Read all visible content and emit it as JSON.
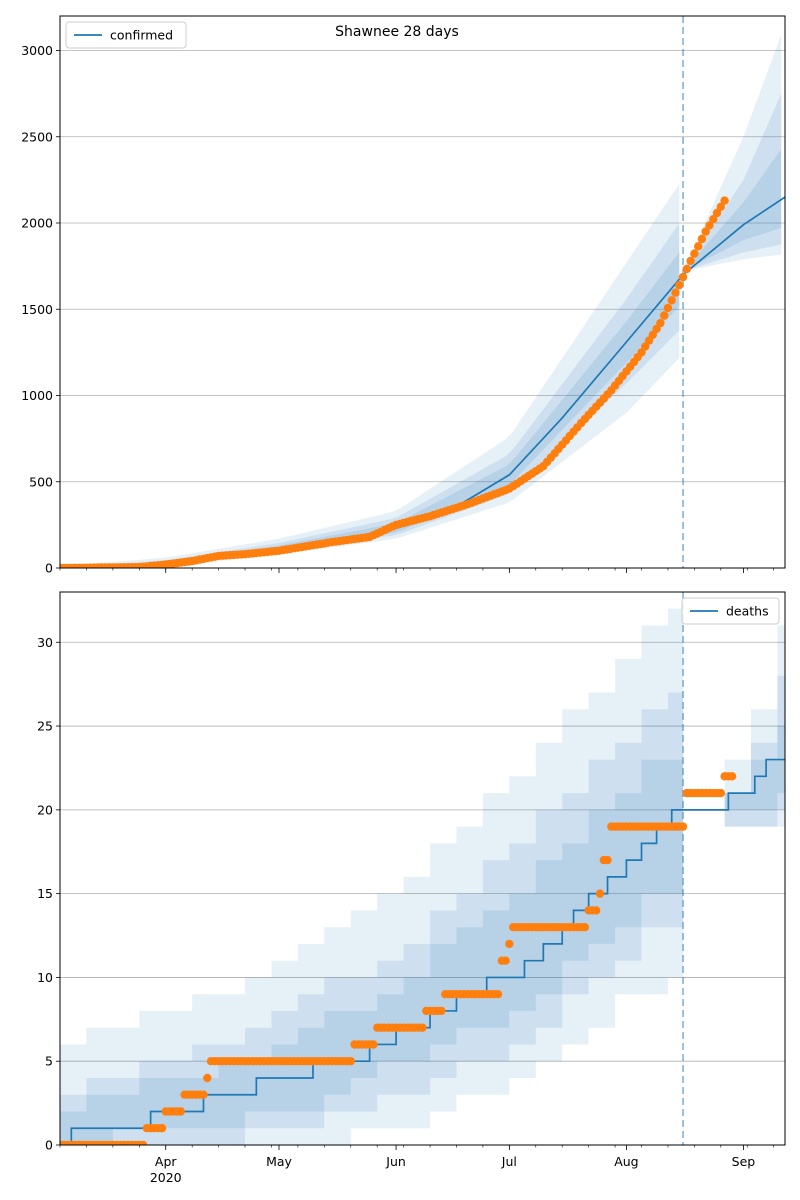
{
  "figure_title": "Shawnee 28 days",
  "colors": {
    "model": "#1f77b4",
    "observed": "#ff7f0e",
    "grid": "#b0b0b0",
    "band": "#1f77b4"
  },
  "chart_data": [
    {
      "type": "line",
      "title": "Shawnee 28 days",
      "legend": {
        "position": "top-left",
        "entries": [
          "confirmed"
        ]
      },
      "xlabel": "",
      "ylabel": "",
      "x_ticks": [
        {
          "date": "2020-04-01",
          "label": "Apr"
        },
        {
          "date": "2020-05-01",
          "label": "May"
        },
        {
          "date": "2020-06-01",
          "label": "Jun"
        },
        {
          "date": "2020-07-01",
          "label": "Jul"
        },
        {
          "date": "2020-08-01",
          "label": "Aug"
        },
        {
          "date": "2020-09-01",
          "label": "Sep"
        }
      ],
      "year_label": "2020",
      "xlim": [
        "2020-03-04",
        "2020-09-12"
      ],
      "ylim": [
        0,
        3200
      ],
      "y_ticks": [
        0,
        500,
        1000,
        1500,
        2000,
        2500,
        3000
      ],
      "grid": "horizontal",
      "forecast_start": "2020-08-16",
      "series": [
        {
          "name": "confirmed",
          "kind": "model-line",
          "points": [
            [
              "2020-03-04",
              0
            ],
            [
              "2020-03-20",
              5
            ],
            [
              "2020-04-01",
              25
            ],
            [
              "2020-04-15",
              70
            ],
            [
              "2020-05-01",
              115
            ],
            [
              "2020-05-15",
              155
            ],
            [
              "2020-06-01",
              230
            ],
            [
              "2020-06-15",
              330
            ],
            [
              "2020-07-01",
              540
            ],
            [
              "2020-07-15",
              870
            ],
            [
              "2020-08-01",
              1310
            ],
            [
              "2020-08-16",
              1700
            ],
            [
              "2020-09-01",
              1990
            ],
            [
              "2020-09-12",
              2150
            ]
          ]
        },
        {
          "kind": "observed",
          "points": [
            [
              "2020-03-04",
              0
            ],
            [
              "2020-03-25",
              5
            ],
            [
              "2020-04-01",
              20
            ],
            [
              "2020-04-08",
              40
            ],
            [
              "2020-04-15",
              70
            ],
            [
              "2020-04-22",
              80
            ],
            [
              "2020-05-01",
              100
            ],
            [
              "2020-05-15",
              150
            ],
            [
              "2020-05-25",
              180
            ],
            [
              "2020-06-01",
              250
            ],
            [
              "2020-06-10",
              300
            ],
            [
              "2020-06-20",
              370
            ],
            [
              "2020-07-01",
              460
            ],
            [
              "2020-07-10",
              590
            ],
            [
              "2020-07-20",
              840
            ],
            [
              "2020-07-28",
              1030
            ],
            [
              "2020-08-05",
              1250
            ],
            [
              "2020-08-10",
              1420
            ],
            [
              "2020-08-15",
              1640
            ],
            [
              "2020-08-18",
              1780
            ],
            [
              "2020-08-22",
              1950
            ],
            [
              "2020-08-27",
              2130
            ]
          ]
        }
      ],
      "bands": {
        "outer_upper": [
          [
            "2020-03-04",
            10
          ],
          [
            "2020-04-01",
            60
          ],
          [
            "2020-05-01",
            170
          ],
          [
            "2020-06-01",
            330
          ],
          [
            "2020-07-01",
            760
          ],
          [
            "2020-08-01",
            1770
          ],
          [
            "2020-08-16",
            2260
          ]
        ],
        "outer_lower": [
          [
            "2020-03-04",
            0
          ],
          [
            "2020-04-01",
            5
          ],
          [
            "2020-05-01",
            80
          ],
          [
            "2020-06-01",
            170
          ],
          [
            "2020-07-01",
            380
          ],
          [
            "2020-08-01",
            900
          ],
          [
            "2020-08-16",
            1240
          ]
        ],
        "mid_upper": [
          [
            "2020-03-04",
            5
          ],
          [
            "2020-04-01",
            45
          ],
          [
            "2020-05-01",
            145
          ],
          [
            "2020-06-01",
            290
          ],
          [
            "2020-07-01",
            660
          ],
          [
            "2020-08-01",
            1560
          ],
          [
            "2020-08-16",
            2030
          ]
        ],
        "mid_lower": [
          [
            "2020-03-04",
            0
          ],
          [
            "2020-04-01",
            10
          ],
          [
            "2020-05-01",
            95
          ],
          [
            "2020-06-01",
            190
          ],
          [
            "2020-07-01",
            430
          ],
          [
            "2020-08-01",
            1070
          ],
          [
            "2020-08-16",
            1400
          ]
        ],
        "inner_upper": [
          [
            "2020-03-04",
            2
          ],
          [
            "2020-04-01",
            35
          ],
          [
            "2020-05-01",
            130
          ],
          [
            "2020-06-01",
            260
          ],
          [
            "2020-07-01",
            600
          ],
          [
            "2020-08-01",
            1430
          ],
          [
            "2020-08-16",
            1860
          ]
        ],
        "inner_lower": [
          [
            "2020-03-04",
            0
          ],
          [
            "2020-04-01",
            15
          ],
          [
            "2020-05-01",
            105
          ],
          [
            "2020-06-01",
            205
          ],
          [
            "2020-07-01",
            480
          ],
          [
            "2020-08-01",
            1190
          ],
          [
            "2020-08-16",
            1540
          ]
        ],
        "f_outer_upper": [
          [
            "2020-08-16",
            1720
          ],
          [
            "2020-09-01",
            2500
          ],
          [
            "2020-09-12",
            3150
          ]
        ],
        "f_outer_lower": [
          [
            "2020-08-16",
            1720
          ],
          [
            "2020-09-01",
            1790
          ],
          [
            "2020-09-12",
            1820
          ]
        ],
        "f_mid_upper": [
          [
            "2020-08-16",
            1720
          ],
          [
            "2020-09-01",
            2250
          ],
          [
            "2020-09-12",
            2800
          ]
        ],
        "f_mid_lower": [
          [
            "2020-08-16",
            1720
          ],
          [
            "2020-09-01",
            1830
          ],
          [
            "2020-09-12",
            1880
          ]
        ],
        "f_inner_upper": [
          [
            "2020-08-16",
            1720
          ],
          [
            "2020-09-01",
            2120
          ],
          [
            "2020-09-12",
            2460
          ]
        ],
        "f_inner_lower": [
          [
            "2020-08-16",
            1720
          ],
          [
            "2020-09-01",
            1900
          ],
          [
            "2020-09-12",
            1980
          ]
        ]
      }
    },
    {
      "type": "line",
      "title": "",
      "legend": {
        "position": "top-right",
        "entries": [
          "deaths"
        ]
      },
      "xlabel": "",
      "ylabel": "",
      "x_ticks": [
        {
          "date": "2020-04-01",
          "label": "Apr"
        },
        {
          "date": "2020-05-01",
          "label": "May"
        },
        {
          "date": "2020-06-01",
          "label": "Jun"
        },
        {
          "date": "2020-07-01",
          "label": "Jul"
        },
        {
          "date": "2020-08-01",
          "label": "Aug"
        },
        {
          "date": "2020-09-01",
          "label": "Sep"
        }
      ],
      "year_label": "2020",
      "xlim": [
        "2020-03-04",
        "2020-09-12"
      ],
      "ylim": [
        0,
        33
      ],
      "y_ticks": [
        0,
        5,
        10,
        15,
        20,
        25,
        30
      ],
      "grid": "horizontal",
      "forecast_start": "2020-08-16",
      "series": [
        {
          "name": "deaths",
          "kind": "model-step",
          "points": [
            [
              "2020-03-04",
              0
            ],
            [
              "2020-03-07",
              1
            ],
            [
              "2020-03-28",
              2
            ],
            [
              "2020-04-11",
              3
            ],
            [
              "2020-04-25",
              4
            ],
            [
              "2020-05-10",
              5
            ],
            [
              "2020-05-25",
              6
            ],
            [
              "2020-06-01",
              7
            ],
            [
              "2020-06-10",
              8
            ],
            [
              "2020-06-17",
              9
            ],
            [
              "2020-06-25",
              10
            ],
            [
              "2020-06-30",
              10
            ],
            [
              "2020-07-05",
              11
            ],
            [
              "2020-07-10",
              12
            ],
            [
              "2020-07-15",
              13
            ],
            [
              "2020-07-18",
              14
            ],
            [
              "2020-07-22",
              15
            ],
            [
              "2020-07-27",
              16
            ],
            [
              "2020-08-01",
              17
            ],
            [
              "2020-08-05",
              18
            ],
            [
              "2020-08-09",
              19
            ],
            [
              "2020-08-13",
              20
            ],
            [
              "2020-08-20",
              20
            ],
            [
              "2020-08-28",
              21
            ],
            [
              "2020-09-04",
              22
            ],
            [
              "2020-09-07",
              23
            ]
          ]
        },
        {
          "kind": "observed",
          "points": [
            [
              "2020-03-04",
              0
            ],
            [
              "2020-03-26",
              0
            ],
            [
              "2020-03-27",
              1
            ],
            [
              "2020-03-31",
              1
            ],
            [
              "2020-04-01",
              2
            ],
            [
              "2020-04-05",
              2
            ],
            [
              "2020-04-06",
              3
            ],
            [
              "2020-04-11",
              3
            ],
            [
              "2020-04-12",
              4
            ],
            [
              "2020-04-13",
              5
            ],
            [
              "2020-05-20",
              5
            ],
            [
              "2020-05-21",
              6
            ],
            [
              "2020-05-26",
              6
            ],
            [
              "2020-05-27",
              7
            ],
            [
              "2020-06-08",
              7
            ],
            [
              "2020-06-09",
              8
            ],
            [
              "2020-06-13",
              8
            ],
            [
              "2020-06-14",
              9
            ],
            [
              "2020-06-28",
              9
            ],
            [
              "2020-06-29",
              11
            ],
            [
              "2020-06-30",
              11
            ],
            [
              "2020-07-01",
              12
            ],
            [
              "2020-07-02",
              13
            ],
            [
              "2020-07-21",
              13
            ],
            [
              "2020-07-22",
              14
            ],
            [
              "2020-07-24",
              14
            ],
            [
              "2020-07-25",
              15
            ],
            [
              "2020-07-26",
              17
            ],
            [
              "2020-07-27",
              17
            ],
            [
              "2020-07-28",
              19
            ],
            [
              "2020-08-16",
              19
            ],
            [
              "2020-08-17",
              21
            ],
            [
              "2020-08-26",
              21
            ],
            [
              "2020-08-27",
              22
            ],
            [
              "2020-08-29",
              22
            ]
          ]
        }
      ],
      "bands": {
        "outer_upper": [
          [
            "2020-03-04",
            6
          ],
          [
            "2020-04-01",
            8
          ],
          [
            "2020-05-01",
            11
          ],
          [
            "2020-06-01",
            16
          ],
          [
            "2020-07-01",
            22
          ],
          [
            "2020-08-01",
            30
          ],
          [
            "2020-08-16",
            33
          ]
        ],
        "outer_lower": [
          [
            "2020-03-04",
            0
          ],
          [
            "2020-04-01",
            0
          ],
          [
            "2020-05-01",
            0
          ],
          [
            "2020-06-01",
            1
          ],
          [
            "2020-07-01",
            4
          ],
          [
            "2020-08-01",
            9
          ],
          [
            "2020-08-16",
            10
          ]
        ],
        "mid_upper": [
          [
            "2020-03-04",
            3
          ],
          [
            "2020-04-01",
            5
          ],
          [
            "2020-05-01",
            8
          ],
          [
            "2020-06-01",
            12
          ],
          [
            "2020-07-01",
            18
          ],
          [
            "2020-08-01",
            25
          ],
          [
            "2020-08-16",
            28
          ]
        ],
        "mid_lower": [
          [
            "2020-03-04",
            0
          ],
          [
            "2020-04-01",
            0
          ],
          [
            "2020-05-01",
            1
          ],
          [
            "2020-06-01",
            3
          ],
          [
            "2020-07-01",
            6
          ],
          [
            "2020-08-01",
            12
          ],
          [
            "2020-08-16",
            14
          ]
        ],
        "inner_upper": [
          [
            "2020-03-04",
            2
          ],
          [
            "2020-04-01",
            4
          ],
          [
            "2020-05-01",
            6
          ],
          [
            "2020-06-01",
            10
          ],
          [
            "2020-07-01",
            15
          ],
          [
            "2020-08-01",
            22
          ],
          [
            "2020-08-16",
            24
          ]
        ],
        "inner_lower": [
          [
            "2020-03-04",
            0
          ],
          [
            "2020-04-01",
            1
          ],
          [
            "2020-05-01",
            2
          ],
          [
            "2020-06-01",
            5
          ],
          [
            "2020-07-01",
            8
          ],
          [
            "2020-08-01",
            14
          ],
          [
            "2020-08-16",
            16
          ]
        ],
        "f_outer_upper": [
          [
            "2020-08-20",
            19
          ],
          [
            "2020-09-01",
            25
          ],
          [
            "2020-09-12",
            32
          ]
        ],
        "f_outer_lower": [
          [
            "2020-08-20",
            19
          ],
          [
            "2020-09-01",
            19
          ],
          [
            "2020-09-12",
            19
          ]
        ],
        "f_mid_upper": [
          [
            "2020-08-20",
            19
          ],
          [
            "2020-09-01",
            23
          ],
          [
            "2020-09-12",
            29
          ]
        ],
        "f_mid_lower": [
          [
            "2020-08-20",
            19
          ],
          [
            "2020-09-01",
            19
          ],
          [
            "2020-09-12",
            20
          ]
        ],
        "f_inner_upper": [
          [
            "2020-08-20",
            19
          ],
          [
            "2020-09-01",
            22
          ],
          [
            "2020-09-12",
            26
          ]
        ],
        "f_inner_lower": [
          [
            "2020-08-20",
            19
          ],
          [
            "2020-09-01",
            20
          ],
          [
            "2020-09-12",
            21
          ]
        ]
      }
    }
  ]
}
